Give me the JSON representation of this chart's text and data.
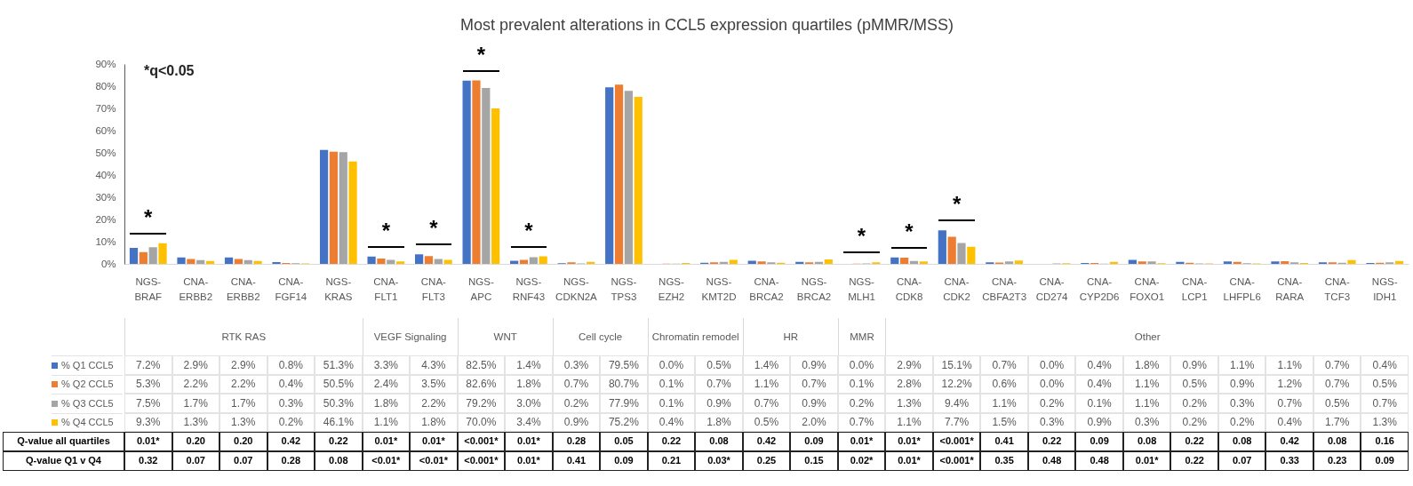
{
  "chart_data": {
    "type": "bar",
    "title": "Most prevalent alterations in CCL5 expression quartiles (pMMR/MSS)",
    "categories": [
      "NGS-BRAF",
      "CNA-ERBB2",
      "CNA-ERBB2",
      "CNA-FGF14",
      "NGS-KRAS",
      "CNA-FLT1",
      "CNA-FLT3",
      "NGS-APC",
      "NGS-RNF43",
      "NGS-CDKN2A",
      "NGS-TPS3",
      "NGS-EZH2",
      "NGS-KMT2D",
      "CNA-BRCA2",
      "NGS-BRCA2",
      "NGS-MLH1",
      "CNA-CDK8",
      "CNA-CDK2",
      "CNA-CBFA2T3",
      "CNA-CD274",
      "CNA-CYP2D6",
      "CNA-FOXO1",
      "CNA-LCP1",
      "CNA-LHFPL6",
      "CNA-RARA",
      "CNA-TCF3",
      "NGS-IDH1"
    ],
    "series": [
      {
        "name": "% Q1 CCL5",
        "color": "#4472c4",
        "values": [
          7.2,
          2.9,
          2.9,
          0.8,
          51.3,
          3.3,
          4.3,
          82.5,
          1.4,
          0.3,
          79.5,
          0.0,
          0.5,
          1.4,
          0.9,
          0.0,
          2.9,
          15.1,
          0.7,
          0.0,
          0.4,
          1.8,
          0.9,
          1.1,
          1.1,
          0.7,
          0.4
        ],
        "value_labels": [
          "7.2%",
          "2.9%",
          "2.9%",
          "0.8%",
          "51.3%",
          "3.3%",
          "4.3%",
          "82.5%",
          "1.4%",
          "0.3%",
          "79.5%",
          "0.0%",
          "0.5%",
          "1.4%",
          "0.9%",
          "0.0%",
          "2.9%",
          "15.1%",
          "0.7%",
          "0.0%",
          "0.4%",
          "1.8%",
          "0.9%",
          "1.1%",
          "1.1%",
          "0.7%",
          "0.4%"
        ]
      },
      {
        "name": "% Q2 CCL5",
        "color": "#ed7d31",
        "values": [
          5.3,
          2.2,
          2.2,
          0.4,
          50.5,
          2.4,
          3.5,
          82.6,
          1.8,
          0.7,
          80.7,
          0.1,
          0.7,
          1.1,
          0.7,
          0.1,
          2.8,
          12.2,
          0.6,
          0.0,
          0.4,
          1.1,
          0.5,
          0.9,
          1.2,
          0.7,
          0.5
        ],
        "value_labels": [
          "5.3%",
          "2.2%",
          "2.2%",
          "0.4%",
          "50.5%",
          "2.4%",
          "3.5%",
          "82.6%",
          "1.8%",
          "0.7%",
          "80.7%",
          "0.1%",
          "0.7%",
          "1.1%",
          "0.7%",
          "0.1%",
          "2.8%",
          "12.2%",
          "0.6%",
          "0.0%",
          "0.4%",
          "1.1%",
          "0.5%",
          "0.9%",
          "1.2%",
          "0.7%",
          "0.5%"
        ]
      },
      {
        "name": "% Q3 CCL5",
        "color": "#a5a5a5",
        "values": [
          7.5,
          1.7,
          1.7,
          0.3,
          50.3,
          1.8,
          2.2,
          79.2,
          3.0,
          0.2,
          77.9,
          0.1,
          0.9,
          0.7,
          0.9,
          0.2,
          1.3,
          9.4,
          1.1,
          0.2,
          0.1,
          1.1,
          0.2,
          0.3,
          0.7,
          0.5,
          0.7
        ],
        "value_labels": [
          "7.5%",
          "1.7%",
          "1.7%",
          "0.3%",
          "50.3%",
          "1.8%",
          "2.2%",
          "79.2%",
          "3.0%",
          "0.2%",
          "77.9%",
          "0.1%",
          "0.9%",
          "0.7%",
          "0.9%",
          "0.2%",
          "1.3%",
          "9.4%",
          "1.1%",
          "0.2%",
          "0.1%",
          "1.1%",
          "0.2%",
          "0.3%",
          "0.7%",
          "0.5%",
          "0.7%"
        ]
      },
      {
        "name": "% Q4 CCL5",
        "color": "#ffc000",
        "values": [
          9.3,
          1.3,
          1.3,
          0.2,
          46.1,
          1.1,
          1.8,
          70.0,
          3.4,
          0.9,
          75.2,
          0.4,
          1.8,
          0.5,
          2.0,
          0.7,
          1.1,
          7.7,
          1.5,
          0.3,
          0.9,
          0.3,
          0.2,
          0.2,
          0.4,
          1.7,
          1.3
        ],
        "value_labels": [
          "9.3%",
          "1.3%",
          "1.3%",
          "0.2%",
          "46.1%",
          "1.1%",
          "1.8%",
          "70.0%",
          "3.4%",
          "0.9%",
          "75.2%",
          "0.4%",
          "1.8%",
          "0.5%",
          "2.0%",
          "0.7%",
          "1.1%",
          "7.7%",
          "1.5%",
          "0.3%",
          "0.9%",
          "0.3%",
          "0.2%",
          "0.2%",
          "0.4%",
          "1.7%",
          "1.3%"
        ]
      }
    ],
    "ylim": [
      0,
      90
    ],
    "yticks": [
      {
        "value": 0,
        "label": "0%"
      },
      {
        "value": 10,
        "label": "10%"
      },
      {
        "value": 20,
        "label": "20%"
      },
      {
        "value": 30,
        "label": "30%"
      },
      {
        "value": 40,
        "label": "40%"
      },
      {
        "value": 50,
        "label": "50%"
      },
      {
        "value": 60,
        "label": "60%"
      },
      {
        "value": 70,
        "label": "70%"
      },
      {
        "value": 80,
        "label": "80%"
      },
      {
        "value": 90,
        "label": "90%"
      }
    ],
    "legend": "bottom left",
    "annotations": [
      "*q<0.05",
      "*",
      "*",
      "*",
      "*",
      "*",
      "*",
      "*",
      "*",
      "RTK RAS",
      "VEGF Signaling",
      "WNT",
      "Cell cycle",
      "Chromatin remodel",
      "HR",
      "MMR",
      "Other",
      "Q-value all quartiles",
      "0.01*",
      "0.20",
      "0.20",
      "0.42",
      "0.22",
      "0.01*",
      "0.01*",
      "<0.001*",
      "0.01*",
      "0.28",
      "0.05",
      "0.22",
      "0.08",
      "0.42",
      "0.09",
      "0.01*",
      "0.01*",
      "<0.001*",
      "0.41",
      "0.22",
      "0.09",
      "0.08",
      "0.22",
      "0.08",
      "0.42",
      "0.08",
      "0.16",
      "Q-value Q1 v Q4",
      "0.32",
      "0.07",
      "0.07",
      "0.28",
      "0.08",
      "<0.01*",
      "<0.01*",
      "<0.001*",
      "0.01*",
      "0.41",
      "0.09",
      "0.21",
      "0.03*",
      "0.25",
      "0.15",
      "0.02*",
      "0.01*",
      "<0.001*",
      "0.35",
      "0.48",
      "0.48",
      "0.01*",
      "0.22",
      "0.07",
      "0.33",
      "0.23",
      "0.09"
    ]
  }
}
